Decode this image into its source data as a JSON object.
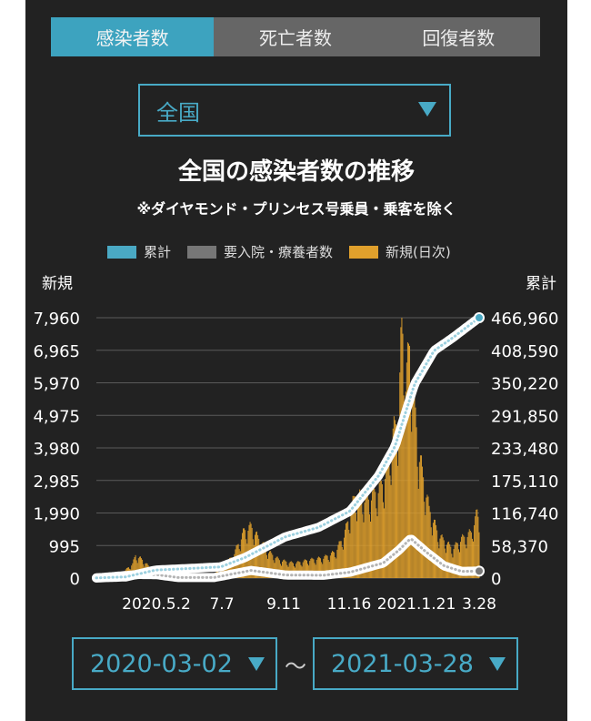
{
  "tabs": [
    {
      "label": "感染者数",
      "active": true
    },
    {
      "label": "死亡者数",
      "active": false
    },
    {
      "label": "回復者数",
      "active": false
    }
  ],
  "region_select": {
    "value": "全国"
  },
  "range": {
    "start": "2020-03-02",
    "end": "2021-03-28",
    "separator": "〜"
  },
  "colors": {
    "accent": "#48aac6",
    "cumulative": "#4aa9c4",
    "hospitalized": "#777777",
    "new": "#e0a02c"
  },
  "chart_data": {
    "type": "bar",
    "title": "全国の感染者数の推移",
    "subtitle": "※ダイヤモンド・プリンセス号乗員・乗客を除く",
    "legend": [
      "累計",
      "要入院・療養者数",
      "新規(日次)"
    ],
    "y_left_label": "新規",
    "y_right_label": "累計",
    "y_left_ticks": [
      "0",
      "995",
      "1,990",
      "2,985",
      "3,980",
      "4,975",
      "5,970",
      "6,965",
      "7,960"
    ],
    "y_right_ticks": [
      "0",
      "58,370",
      "116,740",
      "175,110",
      "233,480",
      "291,850",
      "350,220",
      "408,590",
      "466,960"
    ],
    "ylim_left": [
      0,
      7960
    ],
    "ylim_right": [
      0,
      466960
    ],
    "x_tick_labels": [
      "2020.5.2",
      "7.7",
      "9.11",
      "11.16",
      "2021.1.21",
      "3.28"
    ],
    "x_range": [
      "2020-03-02",
      "2021-03-28"
    ],
    "new_daily_anchors": [
      [
        "2020-03-02",
        10
      ],
      [
        "2020-03-25",
        80
      ],
      [
        "2020-04-08",
        430
      ],
      [
        "2020-04-11",
        700
      ],
      [
        "2020-04-18",
        560
      ],
      [
        "2020-04-28",
        250
      ],
      [
        "2020-05-08",
        80
      ],
      [
        "2020-05-25",
        30
      ],
      [
        "2020-06-15",
        50
      ],
      [
        "2020-06-30",
        120
      ],
      [
        "2020-07-10",
        350
      ],
      [
        "2020-07-20",
        700
      ],
      [
        "2020-07-31",
        1450
      ],
      [
        "2020-08-07",
        1580
      ],
      [
        "2020-08-15",
        1200
      ],
      [
        "2020-08-25",
        800
      ],
      [
        "2020-09-05",
        550
      ],
      [
        "2020-09-20",
        450
      ],
      [
        "2020-10-05",
        550
      ],
      [
        "2020-10-20",
        620
      ],
      [
        "2020-11-01",
        800
      ],
      [
        "2020-11-10",
        1300
      ],
      [
        "2020-11-21",
        2500
      ],
      [
        "2020-12-05",
        2400
      ],
      [
        "2020-12-20",
        2900
      ],
      [
        "2020-12-31",
        4500
      ],
      [
        "2021-01-05",
        5000
      ],
      [
        "2021-01-08",
        7960
      ],
      [
        "2021-01-12",
        6000
      ],
      [
        "2021-01-16",
        7100
      ],
      [
        "2021-01-25",
        3900
      ],
      [
        "2021-02-05",
        2100
      ],
      [
        "2021-02-15",
        1300
      ],
      [
        "2021-03-01",
        900
      ],
      [
        "2021-03-10",
        1200
      ],
      [
        "2021-03-20",
        1400
      ],
      [
        "2021-03-26",
        2000
      ],
      [
        "2021-03-28",
        1750
      ]
    ],
    "cumulative_anchors": [
      [
        "2020-03-02",
        250
      ],
      [
        "2020-04-01",
        2200
      ],
      [
        "2020-05-02",
        14500
      ],
      [
        "2020-06-01",
        16900
      ],
      [
        "2020-07-07",
        20000
      ],
      [
        "2020-08-01",
        37000
      ],
      [
        "2020-09-11",
        74000
      ],
      [
        "2020-10-15",
        91000
      ],
      [
        "2020-11-16",
        120000
      ],
      [
        "2020-12-15",
        183000
      ],
      [
        "2021-01-01",
        236000
      ],
      [
        "2021-01-21",
        348000
      ],
      [
        "2021-02-10",
        408000
      ],
      [
        "2021-03-01",
        431000
      ],
      [
        "2021-03-28",
        466960
      ]
    ],
    "hospitalized_anchors": [
      [
        "2020-03-02",
        200
      ],
      [
        "2020-04-15",
        6500
      ],
      [
        "2020-05-02",
        6200
      ],
      [
        "2020-05-25",
        900
      ],
      [
        "2020-06-30",
        900
      ],
      [
        "2020-08-07",
        13700
      ],
      [
        "2020-09-11",
        5500
      ],
      [
        "2020-10-20",
        5000
      ],
      [
        "2020-11-16",
        10500
      ],
      [
        "2020-12-20",
        27000
      ],
      [
        "2021-01-05",
        50000
      ],
      [
        "2021-01-17",
        71000
      ],
      [
        "2021-02-01",
        48000
      ],
      [
        "2021-02-20",
        22000
      ],
      [
        "2021-03-10",
        12000
      ],
      [
        "2021-03-28",
        12500
      ]
    ]
  }
}
